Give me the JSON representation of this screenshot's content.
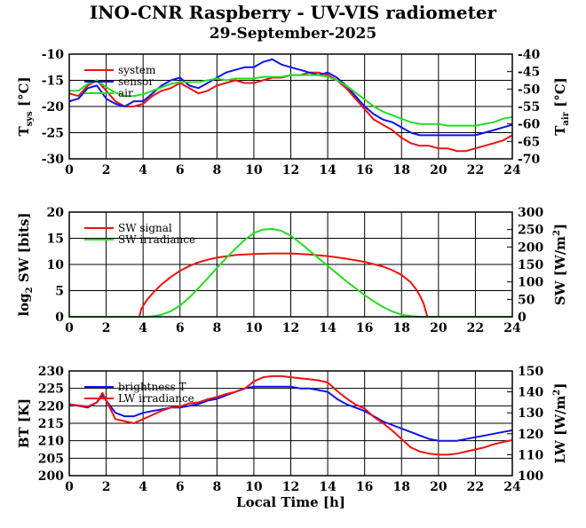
{
  "title": "INO-CNR Raspberry - UV-VIS radiometer",
  "subtitle": "29-September-2025",
  "chart_data": [
    {
      "type": "line",
      "xlabel": "",
      "xlim": [
        0,
        24
      ],
      "xticks": [
        0,
        2,
        4,
        6,
        8,
        10,
        12,
        14,
        16,
        18,
        20,
        22,
        24
      ],
      "ylabel_left": "T_sys [°C]",
      "ylabel_right": "T_air [°C]",
      "ylim_left": [
        -30,
        -10
      ],
      "yticks_left": [
        -30,
        -25,
        -20,
        -15,
        -10
      ],
      "ylim_right": [
        -70,
        -40
      ],
      "yticks_right": [
        -70,
        -65,
        -60,
        -55,
        -50,
        -45,
        -40
      ],
      "grid": true,
      "legend_placement": "top-left",
      "series": [
        {
          "name": "system",
          "color": "#ee1111",
          "axis": "left",
          "x": [
            0,
            0.5,
            1,
            1.5,
            2,
            2.5,
            3,
            3.5,
            4,
            4.5,
            5,
            5.5,
            6,
            6.5,
            7,
            7.5,
            8,
            8.5,
            9,
            9.5,
            10,
            10.5,
            11,
            11.5,
            12,
            12.5,
            13,
            13.5,
            14,
            14.5,
            15,
            15.5,
            16,
            16.5,
            17,
            17.5,
            18,
            18.5,
            19,
            19.5,
            20,
            20.5,
            21,
            21.5,
            22,
            22.5,
            23,
            23.5,
            24
          ],
          "y": [
            -17.5,
            -18.0,
            -16.0,
            -15.0,
            -17.0,
            -19.0,
            -20.0,
            -20.0,
            -19.5,
            -18.0,
            -17.0,
            -16.5,
            -15.5,
            -16.5,
            -17.5,
            -17.0,
            -16.0,
            -15.5,
            -15.0,
            -15.5,
            -15.5,
            -15.0,
            -14.5,
            -14.5,
            -14.0,
            -14.0,
            -13.5,
            -13.5,
            -14.0,
            -15.0,
            -16.5,
            -18.5,
            -20.5,
            -22.5,
            -23.5,
            -24.5,
            -26.0,
            -27.0,
            -27.5,
            -27.5,
            -28.0,
            -28.0,
            -28.5,
            -28.5,
            -28.0,
            -27.5,
            -27.0,
            -26.5,
            -25.5
          ]
        },
        {
          "name": "sensor",
          "color": "#1111ee",
          "axis": "left",
          "x": [
            0,
            0.5,
            1,
            1.5,
            2,
            2.5,
            3,
            3.5,
            4,
            4.5,
            5,
            5.5,
            6,
            6.5,
            7,
            7.5,
            8,
            8.5,
            9,
            9.5,
            10,
            10.5,
            11,
            11.5,
            12,
            12.5,
            13,
            13.5,
            14,
            14.5,
            15,
            15.5,
            16,
            16.5,
            17,
            17.5,
            18,
            18.5,
            19,
            19.5,
            20,
            20.5,
            21,
            21.5,
            22,
            22.5,
            23,
            23.5,
            24
          ],
          "y": [
            -19.0,
            -18.5,
            -16.5,
            -16.0,
            -18.5,
            -19.5,
            -20.0,
            -19.0,
            -19.0,
            -17.5,
            -16.0,
            -15.0,
            -14.5,
            -16.0,
            -16.5,
            -15.5,
            -14.5,
            -13.5,
            -13.0,
            -12.5,
            -12.5,
            -11.5,
            -11.0,
            -12.0,
            -12.5,
            -13.0,
            -13.5,
            -14.0,
            -13.5,
            -14.5,
            -16.0,
            -18.0,
            -20.0,
            -21.5,
            -22.5,
            -23.0,
            -24.0,
            -25.0,
            -25.5,
            -25.5,
            -25.5,
            -25.5,
            -25.5,
            -25.5,
            -25.5,
            -25.0,
            -24.5,
            -24.0,
            -23.5
          ]
        },
        {
          "name": "air",
          "color": "#22dd22",
          "axis": "right",
          "x": [
            0,
            0.5,
            1,
            1.5,
            2,
            2.5,
            3,
            3.5,
            4,
            4.5,
            5,
            5.5,
            6,
            6.5,
            7,
            7.5,
            8,
            8.5,
            9,
            9.5,
            10,
            10.5,
            11,
            11.5,
            12,
            12.5,
            13,
            13.5,
            14,
            14.5,
            15,
            15.5,
            16,
            16.5,
            17,
            17.5,
            18,
            18.5,
            19,
            19.5,
            20,
            20.5,
            21,
            21.5,
            22,
            22.5,
            23,
            23.5,
            24
          ],
          "y": [
            -50.5,
            -50.5,
            -48.5,
            -47.5,
            -49.5,
            -51.0,
            -52.0,
            -52.0,
            -51.5,
            -50.5,
            -49.5,
            -48.5,
            -48.0,
            -48.0,
            -48.0,
            -47.5,
            -47.0,
            -47.5,
            -47.0,
            -47.0,
            -47.0,
            -46.5,
            -46.5,
            -46.5,
            -46.0,
            -46.0,
            -46.0,
            -46.0,
            -46.5,
            -47.5,
            -49.0,
            -51.0,
            -53.0,
            -55.0,
            -56.5,
            -57.5,
            -58.5,
            -59.5,
            -60.0,
            -60.0,
            -60.0,
            -60.5,
            -60.5,
            -60.5,
            -60.5,
            -60.0,
            -59.5,
            -58.5,
            -58.0
          ]
        }
      ]
    },
    {
      "type": "line",
      "xlabel": "",
      "xlim": [
        0,
        24
      ],
      "xticks": [
        0,
        2,
        4,
        6,
        8,
        10,
        12,
        14,
        16,
        18,
        20,
        22,
        24
      ],
      "ylabel_left": "log2 SW [bits]",
      "ylabel_right": "SW [W/m2]",
      "ylim_left": [
        0,
        20
      ],
      "yticks_left": [
        0,
        5,
        10,
        15,
        20
      ],
      "ylim_right": [
        0,
        300
      ],
      "yticks_right": [
        0,
        50,
        100,
        150,
        200,
        250,
        300
      ],
      "grid": true,
      "legend_placement": "top-left",
      "series": [
        {
          "name": "SW signal",
          "color": "#ee1111",
          "axis": "left",
          "x": [
            0,
            3.8,
            3.9,
            4.2,
            4.6,
            5.0,
            5.5,
            6.0,
            6.5,
            7.0,
            7.5,
            8.0,
            9.0,
            10.0,
            11.0,
            12.0,
            13.0,
            14.0,
            15.0,
            16.0,
            17.0,
            17.5,
            18.0,
            18.5,
            18.8,
            19.0,
            19.2,
            19.3,
            19.4,
            24
          ],
          "y": [
            0,
            0,
            1.5,
            3.2,
            4.8,
            6.2,
            7.6,
            8.8,
            9.7,
            10.4,
            10.9,
            11.3,
            11.8,
            12.0,
            12.1,
            12.1,
            11.9,
            11.6,
            11.1,
            10.5,
            9.6,
            8.9,
            8.0,
            6.6,
            5.2,
            4.0,
            2.5,
            1.2,
            0,
            0
          ]
        },
        {
          "name": "SW irradiance",
          "color": "#22dd22",
          "axis": "right",
          "x": [
            0,
            4.0,
            4.5,
            5.0,
            5.5,
            6.0,
            6.5,
            7.0,
            7.5,
            8.0,
            8.5,
            9.0,
            9.5,
            10.0,
            10.5,
            11.0,
            11.5,
            12.0,
            12.5,
            13.0,
            13.5,
            14.0,
            14.5,
            15.0,
            15.5,
            16.0,
            16.5,
            17.0,
            17.5,
            18.0,
            18.5,
            19.0,
            19.5,
            24
          ],
          "y": [
            0,
            0,
            1,
            6,
            16,
            32,
            55,
            82,
            110,
            140,
            168,
            195,
            220,
            240,
            250,
            252,
            246,
            232,
            212,
            190,
            168,
            146,
            124,
            102,
            82,
            62,
            44,
            28,
            15,
            6,
            2,
            0,
            0,
            0
          ]
        }
      ]
    },
    {
      "type": "line",
      "xlabel": "Local Time [h]",
      "xlim": [
        0,
        24
      ],
      "xticks": [
        0,
        2,
        4,
        6,
        8,
        10,
        12,
        14,
        16,
        18,
        20,
        22,
        24
      ],
      "ylabel_left": "BT [K]",
      "ylabel_right": "LW [W/m2]",
      "ylim_left": [
        200,
        230
      ],
      "yticks_left": [
        200,
        205,
        210,
        215,
        220,
        225,
        230
      ],
      "ylim_right": [
        100,
        150
      ],
      "yticks_right": [
        100,
        110,
        120,
        130,
        140,
        150
      ],
      "grid": true,
      "legend_placement": "top-left",
      "series": [
        {
          "name": "brightness T",
          "color": "#1111ee",
          "axis": "left",
          "x": [
            0,
            0.5,
            1,
            1.5,
            1.8,
            2,
            2.5,
            3,
            3.5,
            4,
            4.5,
            5,
            5.5,
            6,
            6.5,
            7,
            7.5,
            8,
            8.5,
            9,
            9.5,
            10,
            10.5,
            11,
            11.5,
            12,
            12.5,
            13,
            13.5,
            14,
            14.5,
            15,
            15.5,
            16,
            16.5,
            17,
            17.5,
            18,
            18.5,
            19,
            19.5,
            20,
            20.5,
            21,
            21.5,
            22,
            22.5,
            23,
            23.5,
            24
          ],
          "y": [
            220.5,
            220.0,
            219.5,
            221.0,
            223.0,
            221.5,
            218.0,
            217.0,
            217.0,
            218.0,
            218.5,
            219.0,
            219.5,
            219.5,
            220.0,
            220.5,
            221.5,
            222.0,
            223.0,
            224.0,
            225.0,
            225.5,
            225.5,
            225.5,
            225.5,
            225.5,
            225.0,
            225.0,
            224.5,
            224.0,
            222.0,
            220.5,
            219.5,
            218.5,
            217.0,
            215.5,
            214.5,
            213.5,
            212.5,
            211.5,
            210.5,
            210.0,
            210.0,
            210.0,
            210.5,
            211.0,
            211.5,
            212.0,
            212.5,
            213.0
          ]
        },
        {
          "name": "LW irradiance",
          "color": "#ee1111",
          "axis": "right",
          "x": [
            0,
            0.5,
            1,
            1.5,
            1.8,
            2,
            2.5,
            3,
            3.5,
            4,
            4.5,
            5,
            5.5,
            6,
            6.5,
            7,
            7.5,
            8,
            8.5,
            9,
            9.5,
            10,
            10.5,
            11,
            11.5,
            12,
            12.5,
            13,
            13.5,
            14,
            14.5,
            15,
            15.5,
            16,
            16.5,
            17,
            17.5,
            18,
            18.5,
            19,
            19.5,
            20,
            20.5,
            21,
            21.5,
            22,
            22.5,
            23,
            23.5,
            24
          ],
          "y": [
            134.0,
            133.5,
            133.0,
            135.0,
            139.5,
            136.0,
            127.0,
            126.0,
            125.0,
            127.0,
            129.0,
            131.0,
            132.5,
            133.0,
            134.5,
            135.0,
            136.5,
            137.5,
            139.0,
            140.0,
            141.5,
            145.0,
            147.0,
            147.5,
            147.5,
            147.0,
            146.5,
            146.0,
            145.5,
            144.5,
            140.5,
            137.0,
            134.0,
            132.0,
            128.0,
            125.0,
            121.5,
            117.5,
            113.5,
            111.5,
            110.5,
            110.0,
            110.0,
            110.5,
            111.5,
            112.5,
            113.5,
            115.0,
            116.0,
            117.0
          ]
        }
      ]
    }
  ]
}
